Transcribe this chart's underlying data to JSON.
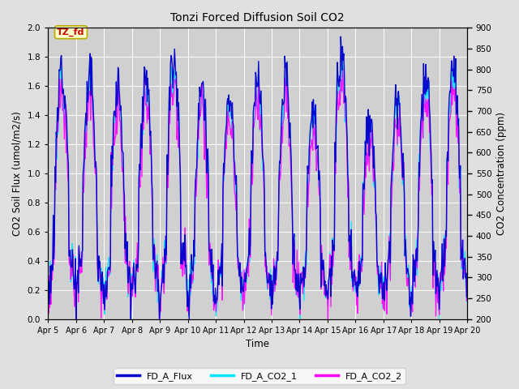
{
  "title": "Tonzi Forced Diffusion Soil CO2",
  "xlabel": "Time",
  "ylabel_left": "CO2 Soil Flux (umol/m2/s)",
  "ylabel_right": "CO2 Concentration (ppm)",
  "tab_label": "TZ_fd",
  "tab_facecolor": "#ffffcc",
  "tab_edgecolor": "#bbaa00",
  "tab_textcolor": "#cc0000",
  "ylim_left": [
    0.0,
    2.0
  ],
  "ylim_right": [
    200,
    900
  ],
  "yticks_left": [
    0.0,
    0.2,
    0.4,
    0.6,
    0.8,
    1.0,
    1.2,
    1.4,
    1.6,
    1.8,
    2.0
  ],
  "yticks_right": [
    200,
    250,
    300,
    350,
    400,
    450,
    500,
    550,
    600,
    650,
    700,
    750,
    800,
    850,
    900
  ],
  "xtick_labels": [
    "Apr 5",
    "Apr 6",
    "Apr 7",
    "Apr 8",
    "Apr 9",
    "Apr 10",
    "Apr 11",
    "Apr 12",
    "Apr 13",
    "Apr 14",
    "Apr 15",
    "Apr 16",
    "Apr 17",
    "Apr 18",
    "Apr 19",
    "Apr 20"
  ],
  "color_flux": "#0000cc",
  "color_co2_1": "#00e5ff",
  "color_co2_2": "#ff00ff",
  "legend_labels": [
    "FD_A_Flux",
    "FD_A_CO2_1",
    "FD_A_CO2_2"
  ],
  "bg_color": "#e0e0e0",
  "plot_bg_color": "#d0d0d0",
  "grid_color": "#ffffff",
  "n_days": 15,
  "seed": 12
}
